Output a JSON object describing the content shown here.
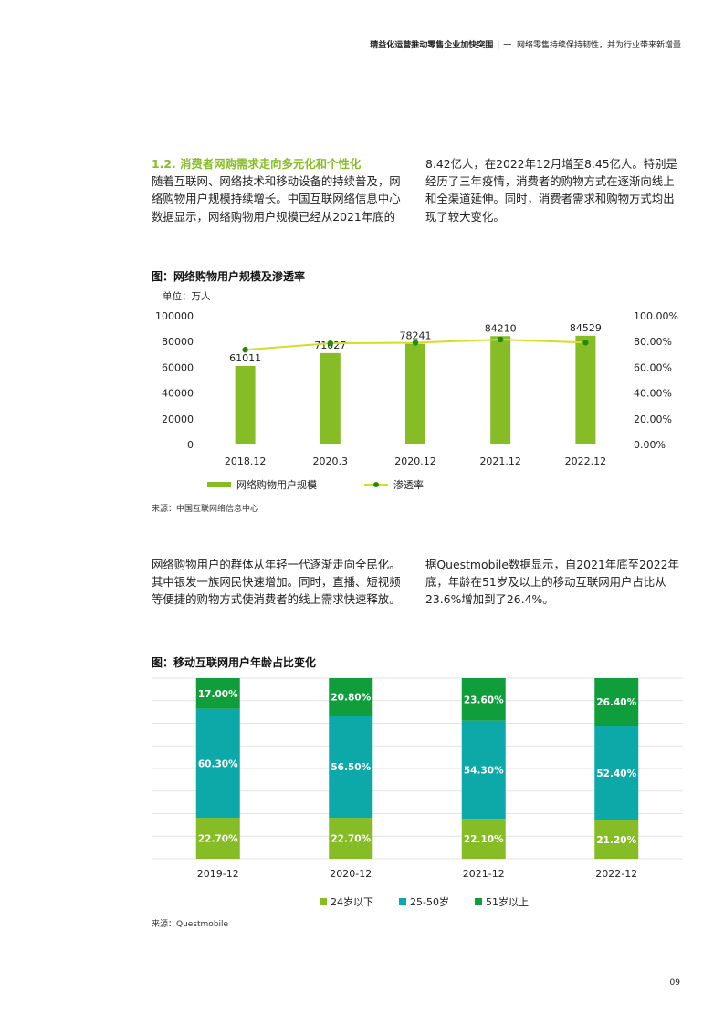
{
  "header": {
    "title": "精益化运营推动零售企业加快突围",
    "separator": "|",
    "section": "一. 网络零售持续保持韧性，并为行业带来新增量"
  },
  "section1": {
    "heading": "1.2. 消费者网购需求走向多元化和个性化",
    "left_text": "随着互联网、网络技术和移动设备的持续普及，网络购物用户规模持续增长。中国互联网络信息中心数据显示，网络购物用户规模已经从2021年底的",
    "right_text": "8.42亿人，在2022年12月增至8.45亿人。特别是经历了三年疫情，消费者的购物方式在逐渐向线上和全渠道延伸。同时，消费者需求和购物方式均出现了较大变化。"
  },
  "figure1": {
    "title": "图：网络购物用户规模及渗透率",
    "unit": "单位：万人",
    "source": "来源：中国互联网络信息中心",
    "legend_bar": "网络购物用户规模",
    "legend_line": "渗透率"
  },
  "section2": {
    "left_text": "网络购物用户的群体从年轻一代逐渐走向全民化。其中银发一族网民快速增加。同时，直播、短视频等便捷的购物方式使消费者的线上需求快速释放。",
    "right_text": "据Questmobile数据显示，自2021年底至2022年底，年龄在51岁及以上的移动互联网用户占比从23.6%增加到了26.4%。"
  },
  "figure2": {
    "title": "图：移动互联网用户年龄占比变化",
    "source": "来源：Questmobile"
  },
  "page_number": "09",
  "chart_data": [
    {
      "type": "bar",
      "categories": [
        "2018.12",
        "2020.3",
        "2020.12",
        "2021.12",
        "2022.12"
      ],
      "series": [
        {
          "name": "网络购物用户规模",
          "type": "bar",
          "axis": "left",
          "values": [
            61011,
            71027,
            78241,
            84210,
            84529
          ],
          "color": "#86bc25"
        },
        {
          "name": "渗透率",
          "type": "line",
          "axis": "right",
          "values": [
            73.6,
            78.6,
            79.1,
            81.6,
            79.2
          ],
          "color": "#d3de2a",
          "marker_color": "#26890d"
        }
      ],
      "data_labels": [
        "61011",
        "71027",
        "78241",
        "84210",
        "84529"
      ],
      "ylim": [
        0,
        100000
      ],
      "yticks": [
        "100000",
        "80000",
        "60000",
        "40000",
        "20000",
        "0"
      ],
      "y2lim": [
        0,
        100
      ],
      "y2ticks": [
        "100.00%",
        "80.00%",
        "60.00%",
        "40.00%",
        "20.00%",
        "0.00%"
      ],
      "legend": "bottom"
    },
    {
      "type": "bar",
      "stacked": true,
      "categories": [
        "2019-12",
        "2020-12",
        "2021-12",
        "2022-12"
      ],
      "series": [
        {
          "name": "24岁以下",
          "values": [
            22.7,
            22.7,
            22.1,
            21.2
          ],
          "labels": [
            "22.70%",
            "22.70%",
            "22.10%",
            "21.20%"
          ],
          "color": "#86bc25"
        },
        {
          "name": "25-50岁",
          "values": [
            60.3,
            56.5,
            54.3,
            52.4
          ],
          "labels": [
            "60.30%",
            "56.50%",
            "54.30%",
            "52.40%"
          ],
          "color": "#0da9a9"
        },
        {
          "name": "51岁以上",
          "values": [
            17.0,
            20.8,
            23.6,
            26.4
          ],
          "labels": [
            "17.00%",
            "20.80%",
            "23.60%",
            "26.40%"
          ],
          "color": "#109e3d"
        }
      ],
      "ylim": [
        0,
        100
      ],
      "grid": true,
      "legend": "bottom"
    }
  ]
}
